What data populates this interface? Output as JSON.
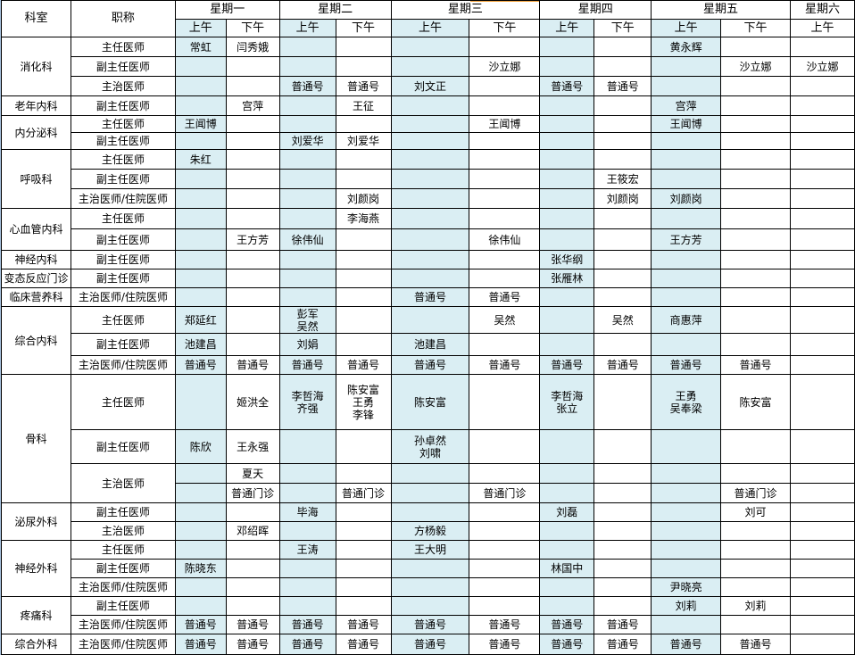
{
  "header": {
    "dept_label": "科室",
    "title_label": "职称",
    "days": [
      {
        "label": "星期一",
        "halves": [
          "上午",
          "下午"
        ]
      },
      {
        "label": "星期二",
        "halves": [
          "上午",
          "下午"
        ]
      },
      {
        "label": "星期三",
        "halves": [
          "上午",
          "下午"
        ]
      },
      {
        "label": "星期四",
        "halves": [
          "上午",
          "下午"
        ]
      },
      {
        "label": "星期五",
        "halves": [
          "上午",
          "下午"
        ]
      },
      {
        "label": "星期六",
        "halves": [
          "上午"
        ]
      }
    ]
  },
  "colors": {
    "morning_fill": "#daeef3",
    "border": "#000000",
    "selection": "#f2a13a"
  },
  "rows": [
    {
      "dept": "消化科",
      "dept_span": 3,
      "title": "主任医师",
      "cells": [
        "常虹",
        "闫秀娥",
        "",
        "",
        "",
        "",
        "",
        "",
        "黄永辉",
        "",
        ""
      ]
    },
    {
      "title": "副主任医师",
      "cells": [
        "",
        "",
        "",
        "",
        "",
        "沙立娜",
        "",
        "",
        "",
        "沙立娜",
        "沙立娜"
      ]
    },
    {
      "title": "主治医师",
      "cells": [
        "",
        "",
        "普通号",
        "普通号",
        "刘文正",
        "",
        "普通号",
        "普通号",
        "",
        "",
        ""
      ]
    },
    {
      "dept": "老年内科",
      "dept_span": 1,
      "title": "副主任医师",
      "cells": [
        "",
        "宫萍",
        "",
        "王征",
        "",
        "",
        "",
        "",
        "宫萍",
        "",
        ""
      ]
    },
    {
      "dept": "内分泌科",
      "dept_span": 2,
      "title": "主任医师",
      "cells": [
        "王闻博",
        "",
        "",
        "",
        "",
        "王闻博",
        "",
        "",
        "王闻博",
        "",
        ""
      ]
    },
    {
      "title": "副主任医师",
      "cells": [
        "",
        "",
        "刘爱华",
        "刘爱华",
        "",
        "",
        "",
        "",
        "",
        "",
        ""
      ]
    },
    {
      "dept": "呼吸科",
      "dept_span": 3,
      "title": "主任医师",
      "cells": [
        "朱红",
        "",
        "",
        "",
        "",
        "",
        "",
        "",
        "",
        "",
        ""
      ]
    },
    {
      "title": "副主任医师",
      "cells": [
        "",
        "",
        "",
        "",
        "",
        "",
        "",
        "王筱宏",
        "",
        "",
        ""
      ]
    },
    {
      "title": "主治医师/住院医师",
      "cells": [
        "",
        "",
        "",
        "刘颜岗",
        "",
        "",
        "",
        "刘颜岗",
        "刘颜岗",
        "",
        ""
      ]
    },
    {
      "dept": "心血管内科",
      "dept_span": 2,
      "title": "主任医师",
      "cells": [
        "",
        "",
        "",
        "李海燕",
        "",
        "",
        "",
        "",
        "",
        "",
        ""
      ]
    },
    {
      "title": "副主任医师",
      "cells": [
        "",
        "王方芳",
        "徐伟仙",
        "",
        "",
        "徐伟仙",
        "",
        "",
        "王方芳",
        "",
        ""
      ]
    },
    {
      "dept": "神经内科",
      "dept_span": 1,
      "title": "副主任医师",
      "cells": [
        "",
        "",
        "",
        "",
        "",
        "",
        "张华纲",
        "",
        "",
        "",
        ""
      ]
    },
    {
      "dept": "变态反应门诊",
      "dept_span": 1,
      "title": "副主任医师",
      "cells": [
        "",
        "",
        "",
        "",
        "",
        "",
        "张雁林",
        "",
        "",
        "",
        ""
      ]
    },
    {
      "dept": "临床营养科",
      "dept_span": 1,
      "title": "主治医师/住院医师",
      "cells": [
        "",
        "",
        "",
        "",
        "普通号",
        "普通号",
        "",
        "",
        "",
        "",
        ""
      ]
    },
    {
      "dept": "综合内科",
      "dept_span": 3,
      "title": "主任医师",
      "cells": [
        "郑延红",
        "",
        "彭军\n吴然",
        "",
        "",
        "吴然",
        "",
        "吴然",
        "商惠萍",
        "",
        ""
      ]
    },
    {
      "title": "副主任医师",
      "cells": [
        "池建昌",
        "",
        "刘娟",
        "",
        "池建昌",
        "",
        "",
        "",
        "",
        "",
        ""
      ]
    },
    {
      "title": "主治医师/住院医师",
      "cells": [
        "普通号",
        "普通号",
        "普通号",
        "普通号",
        "普通号",
        "普通号",
        "普通号",
        "普通号",
        "普通号",
        "普通号",
        ""
      ]
    },
    {
      "dept": "骨科",
      "dept_span": 4,
      "title": "主任医师",
      "cells": [
        "",
        "姬洪全",
        "李哲海\n齐强",
        "陈安富\n王勇\n李锋",
        "陈安富",
        "",
        "李哲海\n张立",
        "",
        "王勇\n吴奉梁",
        "陈安富",
        ""
      ]
    },
    {
      "title": "副主任医师",
      "cells": [
        "陈欣",
        "王永强",
        "",
        "",
        "孙卓然\n刘啸",
        "",
        "",
        "",
        "",
        "",
        ""
      ]
    },
    {
      "title": "主治医师",
      "title_span": 2,
      "cells": [
        "",
        "夏天",
        "",
        "",
        "",
        "",
        "",
        "",
        "",
        "",
        ""
      ]
    },
    {
      "cells": [
        "",
        "普通门诊",
        "",
        "普通门诊",
        "",
        "普通门诊",
        "",
        "",
        "",
        "普通门诊",
        ""
      ]
    },
    {
      "dept": "泌尿外科",
      "dept_span": 2,
      "title": "副主任医师",
      "cells": [
        "",
        "",
        "毕海",
        "",
        "",
        "",
        "刘磊",
        "",
        "",
        "刘可",
        ""
      ]
    },
    {
      "title": "主治医师",
      "cells": [
        "",
        "邓绍晖",
        "",
        "",
        "方杨毅",
        "",
        "",
        "",
        "",
        "",
        ""
      ]
    },
    {
      "dept": "神经外科",
      "dept_span": 3,
      "title": "主任医师",
      "cells": [
        "",
        "",
        "王涛",
        "",
        "王大明",
        "",
        "",
        "",
        "",
        "",
        ""
      ]
    },
    {
      "title": "副主任医师",
      "cells": [
        "陈晓东",
        "",
        "",
        "",
        "",
        "",
        "林国中",
        "",
        "",
        "",
        ""
      ]
    },
    {
      "title": "主治医师/住院医师",
      "cells": [
        "",
        "",
        "",
        "",
        "",
        "",
        "",
        "",
        "尹晓亮",
        "",
        ""
      ]
    },
    {
      "dept": "疼痛科",
      "dept_span": 2,
      "title": "副主任医师",
      "cells": [
        "",
        "",
        "",
        "",
        "",
        "",
        "",
        "",
        "刘莉",
        "刘莉",
        ""
      ]
    },
    {
      "title": "主治医师/住院医师",
      "cells": [
        "普通号",
        "普通号",
        "普通号",
        "普通号",
        "普通号",
        "普通号",
        "普通号",
        "普通号",
        "",
        "",
        ""
      ]
    },
    {
      "dept": "综合外科",
      "dept_span": 1,
      "title": "主治医师/住院医师",
      "cells": [
        "普通号",
        "普通号",
        "普通号",
        "普通号",
        "普通号",
        "普通号",
        "普通号",
        "普通号",
        "普通号",
        "普通号",
        ""
      ]
    }
  ]
}
